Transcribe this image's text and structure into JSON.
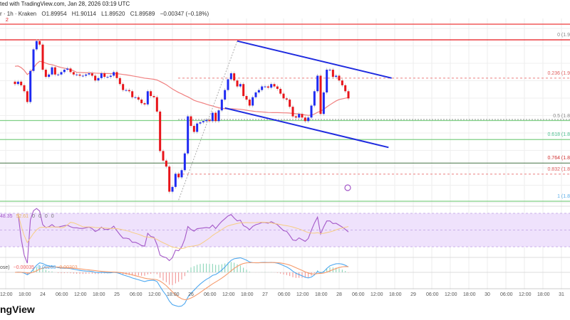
{
  "header": {
    "caption": "ted with TradingView.com, Jan 28, 2026 03:19 UTC",
    "symbol_line": "r · 1h · Kraken",
    "ohlc": {
      "open": "O1.89954",
      "high": "H1.90114",
      "low": "L1.89520",
      "close": "C1.89589",
      "change": "−0.00347 (−0.18%)"
    },
    "marker": "2"
  },
  "colors": {
    "up": "#1f2bf2",
    "down": "#e8141a",
    "sma": "#f08080",
    "channel": "#1f2bdf",
    "rsi": "#a458c8",
    "rsi_ma": "#f7cd82",
    "macd": "#4ea8f0",
    "signal": "#f59a6b",
    "fib_green": "#7fcf85"
  },
  "chart_data": {
    "type": "candlestick",
    "timeframe": "1h",
    "last_candle_time": "2026-01-28T03:00",
    "ylim": [
      1.81,
      1.945
    ],
    "grid": true,
    "closes": [
      1.908,
      1.91,
      1.907,
      1.902,
      1.893,
      1.919,
      1.937,
      1.944,
      1.941,
      1.92,
      1.914,
      1.916,
      1.922,
      1.916,
      1.916,
      1.918,
      1.92,
      1.921,
      1.918,
      1.916,
      1.916,
      1.915,
      1.915,
      1.916,
      1.917,
      1.915,
      1.911,
      1.913,
      1.917,
      1.914,
      1.914,
      1.915,
      1.918,
      1.913,
      1.908,
      1.903,
      1.903,
      1.902,
      1.897,
      1.897,
      1.895,
      1.892,
      1.891,
      1.902,
      1.898,
      1.897,
      1.885,
      1.852,
      1.844,
      1.839,
      1.818,
      1.822,
      1.833,
      1.83,
      1.836,
      1.85,
      1.881,
      1.873,
      1.868,
      1.875,
      1.876,
      1.877,
      1.878,
      1.877,
      1.884,
      1.877,
      1.886,
      1.895,
      1.903,
      1.912,
      1.917,
      1.911,
      1.906,
      1.908,
      1.898,
      1.895,
      1.89,
      1.897,
      1.901,
      1.903,
      1.906,
      1.906,
      1.905,
      1.908,
      1.906,
      1.904,
      1.9,
      1.896,
      1.895,
      1.889,
      1.881,
      1.88,
      1.883,
      1.88,
      1.877,
      1.88,
      1.89,
      1.902,
      1.915,
      1.883,
      1.901,
      1.92,
      1.92,
      1.914,
      1.915,
      1.911,
      1.907,
      1.902,
      1.896
    ],
    "fib_levels": [
      {
        "ratio": 0,
        "label": "0 (1.9",
        "price": 1.945,
        "color": "#e8141a",
        "label_color": "#888"
      },
      {
        "ratio": 0.236,
        "label": "0.236 (1.9",
        "price": 1.913,
        "color": "#f0a0a0",
        "label_color": "#e06060"
      },
      {
        "ratio": 0.5,
        "label": "0.5 (1.8",
        "price": 1.8775,
        "color": "#7fcf85",
        "label_color": "#888"
      },
      {
        "ratio": 0.618,
        "label": "0.618 (1.8",
        "price": 1.8616,
        "color": "#7fcf85",
        "label_color": "#4cbf8f"
      },
      {
        "ratio": 0.764,
        "label": "0.764 (1.8",
        "price": 1.8419,
        "color": "#6a8f6a",
        "label_color": "#d03030"
      },
      {
        "ratio": 0.832,
        "label": "0.832 (1.8",
        "price": 1.8327,
        "color": "#f0a0a0",
        "label_color": "#e06060"
      },
      {
        "ratio": 1,
        "label": "1 (1.8",
        "price": 1.81,
        "color": "#7fcf85",
        "label_color": "#5aaee8"
      }
    ],
    "resistance_price": 1.961,
    "channel_upper": [
      {
        "time": "2026-01-26T15:00",
        "price": 1.944
      },
      {
        "time": "2026-01-28T17:00",
        "price": 1.913
      }
    ],
    "channel_lower": [
      {
        "time": "2026-01-26T11:00",
        "price": 1.888
      },
      {
        "time": "2026-01-28T16:00",
        "price": 1.855
      }
    ],
    "fib_anchor": [
      {
        "time": "2026-01-25T20:00",
        "price": 1.811
      },
      {
        "time": "2026-01-26T15:00",
        "price": 1.944
      }
    ],
    "x_tick_labels": [
      "12:00",
      "18:00",
      "24",
      "06:00",
      "12:00",
      "18:00",
      "25",
      "06:00",
      "12:00",
      "18:00",
      "26",
      "06:00",
      "12:00",
      "18:00",
      "27",
      "06:00",
      "12:00",
      "18:00",
      "28",
      "06:00",
      "12:00",
      "18:00",
      "29",
      "06:00",
      "12:00",
      "18:00",
      "30",
      "06:00",
      "12:00",
      "18:00",
      "31"
    ]
  },
  "rsi": {
    "value": "48.35",
    "ma": "52.61",
    "extras": [
      "0",
      "0",
      "0",
      "0"
    ]
  },
  "macd": {
    "label": "ose)",
    "hist": "−0.00035",
    "macd": "0.00268",
    "signal": "0.00303"
  },
  "logo": "ngView"
}
